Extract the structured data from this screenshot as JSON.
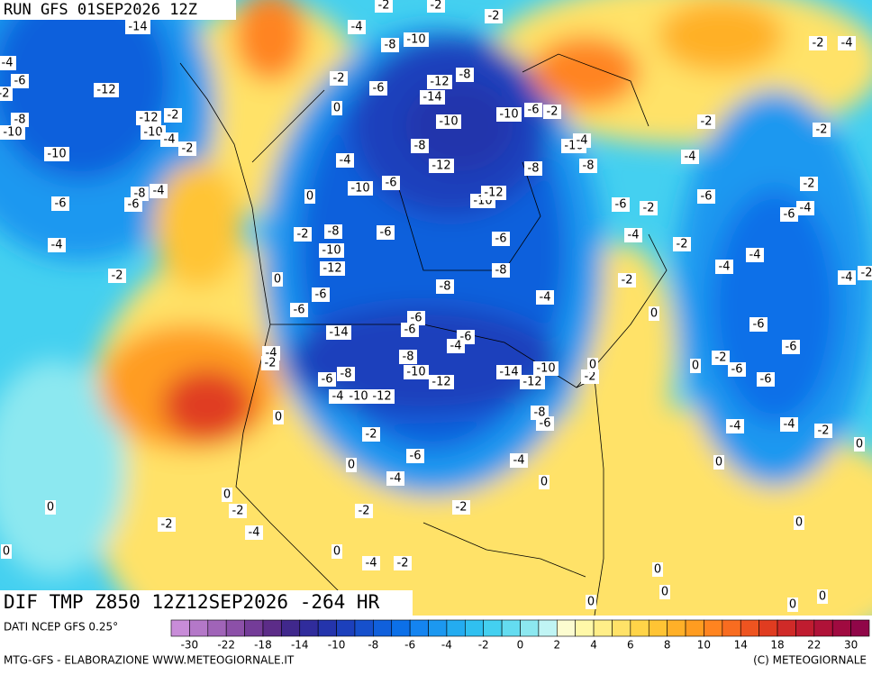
{
  "header": {
    "run": "RUN GFS 01SEP2026 12Z",
    "title": "DIF TMP Z850 12Z12SEP2026 -264 HR"
  },
  "footer": {
    "source": "DATI NCEP GFS 0.25°",
    "credit": "MTG-GFS - ELABORAZIONE WWW.METEOGIORNALE.IT",
    "copyright": "(C) METEOGIORNALE"
  },
  "colorbar": {
    "colors": [
      "#c88cd8",
      "#b478c8",
      "#a064b8",
      "#8c50a8",
      "#743c98",
      "#5c2c88",
      "#40288c",
      "#302c9c",
      "#2434ac",
      "#1c40bc",
      "#1650cc",
      "#1060dc",
      "#0c70e8",
      "#1484f0",
      "#1c98f0",
      "#24acf0",
      "#30c0f0",
      "#44d0f0",
      "#64dcf0",
      "#8ce8f0",
      "#c0f4f4",
      "#fcfcd0",
      "#fff8a8",
      "#ffee88",
      "#ffe268",
      "#ffd448",
      "#ffc434",
      "#ffb028",
      "#ff9c20",
      "#ff8420",
      "#f86c20",
      "#ee5420",
      "#e03c20",
      "#d02a28",
      "#c01c30",
      "#b01238",
      "#a00a40",
      "#900648"
    ],
    "labels": [
      -30,
      -22,
      -18,
      -14,
      -10,
      -8,
      -6,
      -4,
      -2,
      0,
      2,
      4,
      6,
      8,
      10,
      14,
      18,
      22,
      30
    ]
  },
  "contour_labels": [
    -14,
    -12,
    -12,
    -2,
    -10,
    -4,
    -8,
    -10,
    -6,
    -10,
    -2,
    -8,
    -4,
    -6,
    -6,
    -4,
    -2,
    0,
    -2,
    -4,
    -8,
    -10,
    -6,
    -12,
    -8,
    -14,
    -10,
    -10,
    -6,
    -2,
    -10,
    -4,
    -8,
    -12,
    -8,
    -8,
    -4,
    0,
    -10,
    -6,
    -10,
    -12,
    -2,
    -8,
    -6,
    -10,
    -12,
    -6,
    -8,
    0,
    -6,
    -6,
    -8,
    -4,
    -6,
    -6,
    -6,
    -4,
    -14,
    -4,
    -2,
    -8,
    -10,
    -12,
    -8,
    -6,
    -14,
    -12,
    -10,
    -2,
    -4,
    -10,
    -12,
    0,
    -8,
    -6,
    -2,
    -6,
    0,
    -4,
    -4,
    0,
    0,
    -2,
    -2,
    -2,
    0,
    -2,
    -4,
    0,
    -4,
    -2,
    0,
    -2,
    -2,
    -2,
    -6,
    -2,
    -4,
    -2,
    -6,
    -6,
    -4,
    -2,
    -4,
    -2,
    -2,
    -2,
    -4,
    -4,
    -4,
    -2,
    0,
    0,
    -6,
    -6,
    -2,
    -6,
    -6,
    -4,
    -4,
    -2,
    0,
    0,
    0,
    -4,
    -2,
    0,
    -4,
    -2,
    0,
    0,
    0,
    0,
    0
  ]
}
